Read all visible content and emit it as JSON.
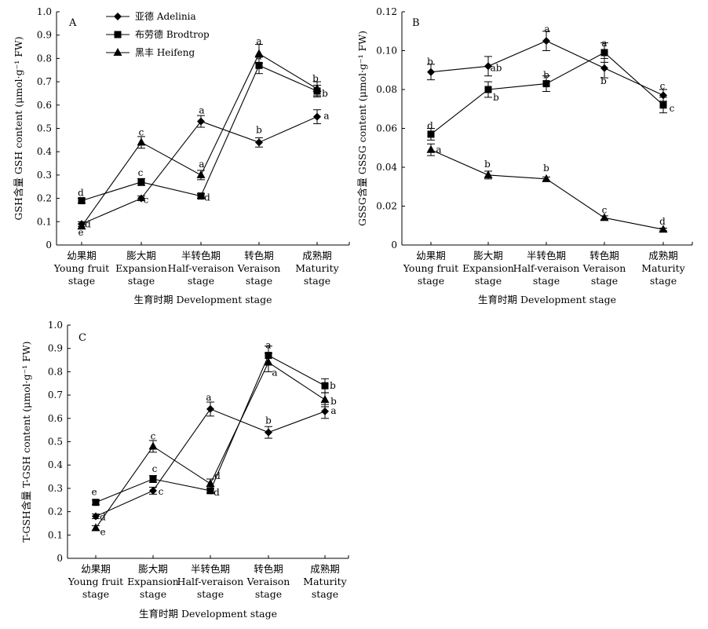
{
  "categories": [
    [
      "幼果期",
      "Young fruit",
      "stage"
    ],
    [
      "膨大期",
      "Expansion",
      "stage"
    ],
    [
      "半转色期",
      "Half-veraison",
      "stage"
    ],
    [
      "转色期",
      "Veraison",
      "stage"
    ],
    [
      "成熟期",
      "Maturity",
      "stage"
    ]
  ],
  "chart_data": [
    {
      "type": "line",
      "panel": "A",
      "ylabel": "GSH含量 GSH content (μmol·g⁻¹ FW)",
      "xlabel": "生育时期 Development stage",
      "ylim": [
        0,
        1.0
      ],
      "yticks": [
        "0",
        "0.1",
        "0.2",
        "0.3",
        "0.4",
        "0.5",
        "0.6",
        "0.7",
        "0.8",
        "0.9",
        "1.0"
      ],
      "legend_position": "top-left",
      "series": [
        {
          "name": "亚德 Adelinia",
          "marker": "diamond",
          "values": [
            0.09,
            0.2,
            0.53,
            0.44,
            0.55
          ],
          "errors": [
            0.01,
            0.01,
            0.025,
            0.02,
            0.03
          ],
          "letters": [
            "d",
            "c",
            "a",
            "b",
            "a"
          ]
        },
        {
          "name": "布劳德 Brodtrop",
          "marker": "square",
          "values": [
            0.19,
            0.27,
            0.21,
            0.77,
            0.66
          ],
          "errors": [
            0.01,
            0.015,
            0.01,
            0.035,
            0.025
          ],
          "letters": [
            "d",
            "c",
            "d",
            "a",
            "b"
          ]
        },
        {
          "name": "黑丰 Heifeng",
          "marker": "triangle",
          "values": [
            0.08,
            0.44,
            0.3,
            0.82,
            0.67
          ],
          "errors": [
            0.01,
            0.025,
            0.02,
            0.04,
            0.03
          ],
          "letters": [
            "e",
            "c",
            "a",
            "a",
            "b"
          ]
        }
      ]
    },
    {
      "type": "line",
      "panel": "B",
      "ylabel": "GSSG含量 GSSG content (μmol·g⁻¹ FW)",
      "xlabel": "生育时期 Development stage",
      "ylim": [
        0,
        0.12
      ],
      "yticks": [
        "0",
        "0.02",
        "0.04",
        "0.06",
        "0.08",
        "0.10",
        "0.12"
      ],
      "series": [
        {
          "name": "亚德 Adelinia",
          "marker": "diamond",
          "values": [
            0.089,
            0.092,
            0.105,
            0.091,
            0.077
          ],
          "errors": [
            0.004,
            0.005,
            0.005,
            0.005,
            0.003
          ],
          "letters": [
            "b",
            "ab",
            "a",
            "b",
            "c"
          ]
        },
        {
          "name": "布劳德 Brodtrop",
          "marker": "square",
          "values": [
            0.057,
            0.08,
            0.083,
            0.099,
            0.072
          ],
          "errors": [
            0.003,
            0.004,
            0.004,
            0.005,
            0.004
          ],
          "letters": [
            "d",
            "b",
            "b",
            "a",
            "c"
          ]
        },
        {
          "name": "黑丰 Heifeng",
          "marker": "triangle",
          "values": [
            0.049,
            0.036,
            0.034,
            0.014,
            0.008
          ],
          "errors": [
            0.003,
            0.002,
            0.001,
            0.001,
            0.0007
          ],
          "letters": [
            "a",
            "b",
            "b",
            "c",
            "d"
          ]
        }
      ]
    },
    {
      "type": "line",
      "panel": "C",
      "ylabel": "T-GSH含量 T-GSH content (μmol·g⁻¹ FW)",
      "xlabel": "生育时期 Development stage",
      "ylim": [
        0,
        1.0
      ],
      "yticks": [
        "0",
        "0.1",
        "0.2",
        "0.3",
        "0.4",
        "0.5",
        "0.6",
        "0.7",
        "0.8",
        "0.9",
        "1.0"
      ],
      "series": [
        {
          "name": "亚德 Adelinia",
          "marker": "diamond",
          "values": [
            0.18,
            0.29,
            0.64,
            0.54,
            0.63
          ],
          "errors": [
            0.01,
            0.015,
            0.03,
            0.025,
            0.03
          ],
          "letters": [
            "d",
            "c",
            "a",
            "b",
            "a"
          ]
        },
        {
          "name": "布劳德 Brodtrop",
          "marker": "square",
          "values": [
            0.24,
            0.34,
            0.29,
            0.87,
            0.74
          ],
          "errors": [
            0.01,
            0.015,
            0.01,
            0.04,
            0.03
          ],
          "letters": [
            "e",
            "c",
            "d",
            "a",
            "b"
          ]
        },
        {
          "name": "黑丰 Heifeng",
          "marker": "triangle",
          "values": [
            0.13,
            0.48,
            0.32,
            0.84,
            0.68
          ],
          "errors": [
            0.01,
            0.025,
            0.02,
            0.04,
            0.03
          ],
          "letters": [
            "e",
            "c",
            "d",
            "a",
            "b"
          ]
        }
      ]
    }
  ]
}
